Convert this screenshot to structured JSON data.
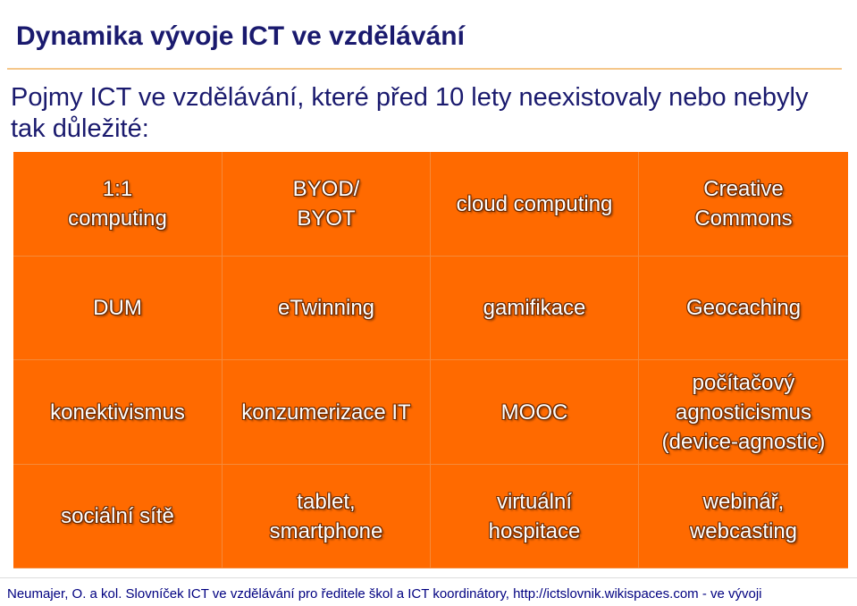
{
  "title": "Dynamika vývoje ICT ve vzdělávání",
  "subtitle": "Pojmy ICT ve vzdělávání, které před 10 lety neexistovaly nebo nebyly tak důležité:",
  "colors": {
    "title": "#1a1a6e",
    "grid_background": "#ff6a00",
    "cell_text": "#ffffff",
    "cell_text_outline": "#6e2a00",
    "title_rule": "#f5c78a"
  },
  "grid": {
    "cells": [
      "1:1\ncomputing",
      "BYOD/\nBYOT",
      "cloud computing",
      "Creative\nCommons",
      "DUM",
      "eTwinning",
      "gamifikace",
      "Geocaching",
      "konektivismus",
      "konzumerizace IT",
      "MOOC",
      "počítačový\nagnosticismus\n(device-agnostic)",
      "sociální sítě",
      "tablet,\nsmartphone",
      "virtuální\nhospitace",
      "webinář,\nwebcasting"
    ]
  },
  "footer": "Neumajer, O. a kol. Slovníček ICT ve vzdělávání pro ředitele škol a ICT koordinátory, http://ictslovnik.wikispaces.com - ve vývoji"
}
